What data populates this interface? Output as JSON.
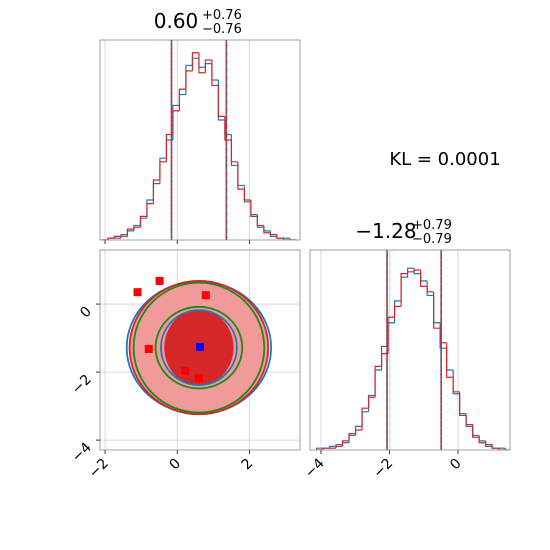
{
  "chart_data": [
    {
      "type": "histogram",
      "title": {
        "value": "0.60",
        "plus": "+0.76",
        "minus": "−0.76"
      },
      "annotation": "KL = 0.0001",
      "bins": [
        -2.1,
        -1.92,
        -1.74,
        -1.56,
        -1.38,
        -1.2,
        -1.02,
        -0.84,
        -0.66,
        -0.48,
        -0.3,
        -0.12,
        0.06,
        0.24,
        0.42,
        0.6,
        0.78,
        0.96,
        1.14,
        1.32,
        1.5,
        1.68,
        1.86,
        2.04,
        2.22,
        2.4,
        2.58,
        2.76,
        2.94,
        3.12,
        3.3
      ],
      "series": [
        {
          "color": "#1f77b4",
          "values": [
            0,
            1,
            1,
            3,
            5,
            8,
            12,
            22,
            31,
            45,
            55,
            74,
            80,
            96,
            100,
            95,
            97,
            88,
            66,
            58,
            41,
            30,
            21,
            14,
            7,
            5,
            2,
            1,
            1,
            0
          ]
        },
        {
          "color": "#d62728",
          "values": [
            0,
            1,
            2,
            2,
            6,
            7,
            13,
            20,
            33,
            43,
            58,
            71,
            83,
            93,
            103,
            92,
            99,
            85,
            68,
            55,
            43,
            28,
            22,
            13,
            8,
            4,
            3,
            1,
            0,
            0
          ]
        }
      ],
      "quantiles": [
        -0.16,
        1.36
      ],
      "xlim": [
        -2.14,
        3.4
      ],
      "ylim": [
        0,
        110
      ],
      "xticks": [
        {
          "value": -2,
          "label": "−2"
        },
        0,
        2
      ],
      "show_tick_labels": false,
      "grid": true
    },
    {
      "type": "contour",
      "center": {
        "x": 0.6,
        "y": -1.28
      },
      "contours": [
        {
          "color": "#f19a9a",
          "filled": true,
          "rx": 1.95,
          "ry": 1.97
        },
        {
          "color": "#d62728",
          "filled": true,
          "rx": 0.96,
          "ry": 1.12
        },
        {
          "color": "#1f77b4",
          "filled": false,
          "rx": 2.0,
          "ry": 1.95
        },
        {
          "color": "#1f77b4",
          "filled": false,
          "rx": 1.05,
          "ry": 1.1
        },
        {
          "color": "#d62728",
          "filled": false,
          "rx": 1.92,
          "ry": 1.96
        },
        {
          "color": "#1a8a1a",
          "filled": false,
          "rx": 1.81,
          "ry": 1.91
        },
        {
          "color": "#1a8a1a",
          "filled": false,
          "rx": 1.2,
          "ry": 1.2
        }
      ],
      "points": {
        "color": "#ff0000",
        "x": [
          -1.1,
          -0.49,
          0.79,
          -0.79,
          0.22,
          0.6
        ],
        "y": [
          0.35,
          0.68,
          0.26,
          -1.32,
          -1.97,
          -2.18
        ]
      },
      "marker": {
        "color": "#0000ff",
        "x": 0.63,
        "y": -1.26
      },
      "xlim": [
        -2.14,
        3.4
      ],
      "ylim": [
        -4.29,
        1.59
      ],
      "xticks": [
        {
          "value": -2,
          "label": "−2"
        },
        0,
        2
      ],
      "yticks": [
        {
          "value": -4,
          "label": "−4"
        },
        {
          "value": -2,
          "label": "−2"
        },
        0
      ],
      "grid": true
    },
    {
      "type": "histogram",
      "title": {
        "value": "−1.28",
        "plus": "+0.79",
        "minus": "−0.79"
      },
      "bins": [
        -4.13,
        -3.94,
        -3.75,
        -3.56,
        -3.37,
        -3.18,
        -2.99,
        -2.8,
        -2.61,
        -2.42,
        -2.23,
        -2.04,
        -1.85,
        -1.66,
        -1.47,
        -1.28,
        -1.09,
        -0.9,
        -0.71,
        -0.52,
        -0.33,
        -0.14,
        0.05,
        0.24,
        0.43,
        0.62,
        0.81,
        1.0,
        1.19,
        1.38,
        1.57
      ],
      "series": [
        {
          "color": "#1f77b4",
          "values": [
            1,
            1,
            2,
            3,
            4,
            8,
            13,
            21,
            30,
            44,
            57,
            70,
            82,
            95,
            100,
            97,
            93,
            85,
            70,
            56,
            44,
            31,
            20,
            13,
            8,
            5,
            2,
            1,
            1,
            0
          ]
        },
        {
          "color": "#d62728",
          "values": [
            0,
            1,
            1,
            2,
            5,
            9,
            11,
            23,
            29,
            46,
            53,
            73,
            79,
            97,
            98,
            99,
            90,
            87,
            67,
            59,
            40,
            32,
            19,
            14,
            7,
            4,
            3,
            1,
            0,
            0
          ]
        }
      ],
      "quantiles": [
        -2.07,
        -0.49
      ],
      "xlim": [
        -4.32,
        1.52
      ],
      "ylim": [
        0,
        110
      ],
      "xticks": [
        {
          "value": -4,
          "label": "−4"
        },
        {
          "value": -2,
          "label": "−2"
        },
        0
      ],
      "show_tick_labels": true,
      "grid": true
    }
  ]
}
